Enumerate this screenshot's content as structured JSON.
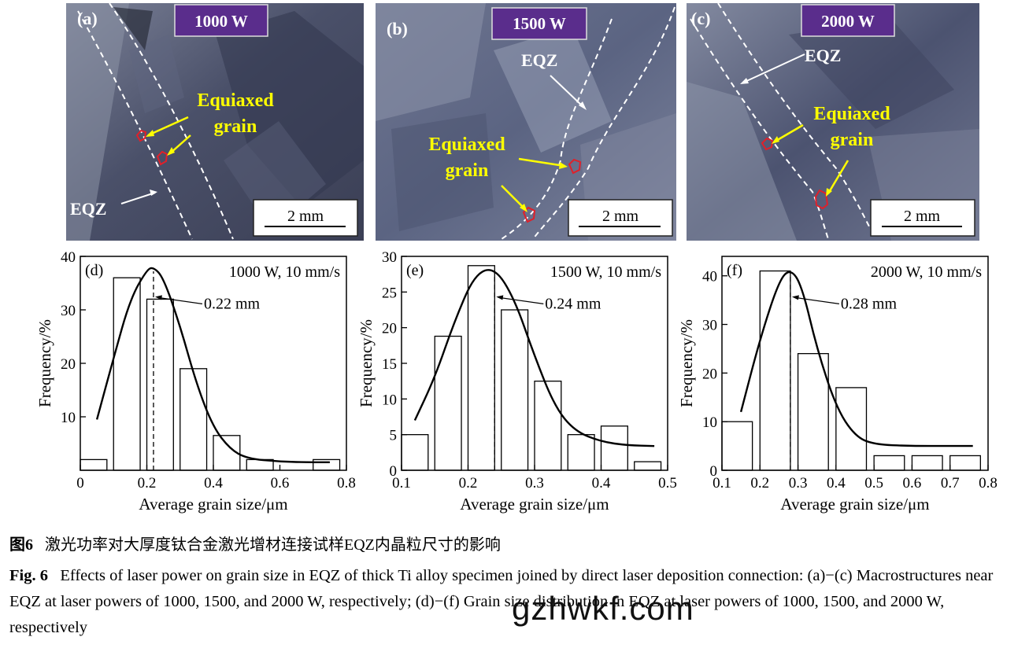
{
  "panels": [
    {
      "label": "(a)",
      "power": "1000 W",
      "eqz": "EQZ",
      "eq1": "Equiaxed",
      "eq2": "grain",
      "scale": "2 mm"
    },
    {
      "label": "(b)",
      "power": "1500 W",
      "eqz": "EQZ",
      "eq1": "Equiaxed",
      "eq2": "grain",
      "scale": "2 mm"
    },
    {
      "label": "(c)",
      "power": "2000 W",
      "eqz": "EQZ",
      "eq1": "Equiaxed",
      "eq2": "grain",
      "scale": "2 mm"
    }
  ],
  "chart_data": [
    {
      "type": "bar",
      "label": "(d)",
      "condition": "1000 W, 10 mm/s",
      "xlabel": "Average grain size/μm",
      "ylabel": "Frequency/%",
      "xlim": [
        0,
        0.8
      ],
      "ylim": [
        0,
        40
      ],
      "xticks": [
        "0",
        "0.2",
        "0.4",
        "0.6",
        "0.8"
      ],
      "yticks": [
        "10",
        "20",
        "30",
        "40"
      ],
      "bins": [
        [
          0.0,
          0.08,
          2
        ],
        [
          0.1,
          0.18,
          36
        ],
        [
          0.2,
          0.28,
          32
        ],
        [
          0.3,
          0.38,
          19
        ],
        [
          0.4,
          0.48,
          6.5
        ],
        [
          0.5,
          0.58,
          2
        ],
        [
          0.7,
          0.78,
          2
        ]
      ],
      "fit": [
        [
          0.05,
          9.5
        ],
        [
          0.1,
          21
        ],
        [
          0.15,
          32
        ],
        [
          0.2,
          37.5
        ],
        [
          0.22,
          38
        ],
        [
          0.25,
          36
        ],
        [
          0.3,
          27
        ],
        [
          0.35,
          16
        ],
        [
          0.4,
          8
        ],
        [
          0.45,
          4
        ],
        [
          0.5,
          2.2
        ],
        [
          0.6,
          1.6
        ],
        [
          0.7,
          1.5
        ],
        [
          0.75,
          1.5
        ]
      ],
      "mean": 0.22,
      "mean_label": "0.22 mm"
    },
    {
      "type": "bar",
      "label": "(e)",
      "condition": "1500 W, 10 mm/s",
      "xlabel": "Average grain size/μm",
      "ylabel": "Frequency/%",
      "xlim": [
        0.1,
        0.5
      ],
      "ylim": [
        0,
        30
      ],
      "xticks": [
        "0.1",
        "0.2",
        "0.3",
        "0.4",
        "0.5"
      ],
      "yticks": [
        "0",
        "5",
        "10",
        "15",
        "20",
        "25",
        "30"
      ],
      "bins": [
        [
          0.1,
          0.14,
          5
        ],
        [
          0.15,
          0.19,
          18.8
        ],
        [
          0.2,
          0.24,
          28.7
        ],
        [
          0.25,
          0.29,
          22.5
        ],
        [
          0.3,
          0.34,
          12.5
        ],
        [
          0.35,
          0.39,
          5
        ],
        [
          0.4,
          0.44,
          6.2
        ],
        [
          0.45,
          0.49,
          1.2
        ]
      ],
      "fit": [
        [
          0.12,
          7
        ],
        [
          0.15,
          13
        ],
        [
          0.18,
          21
        ],
        [
          0.21,
          27.5
        ],
        [
          0.24,
          28.5
        ],
        [
          0.27,
          24
        ],
        [
          0.3,
          16
        ],
        [
          0.33,
          9
        ],
        [
          0.36,
          5.5
        ],
        [
          0.4,
          4
        ],
        [
          0.44,
          3.5
        ],
        [
          0.48,
          3.4
        ]
      ],
      "mean": 0.24,
      "mean_label": "0.24 mm"
    },
    {
      "type": "bar",
      "label": "(f)",
      "condition": "2000 W, 10 mm/s",
      "xlabel": "Average grain size/μm",
      "ylabel": "Frequency/%",
      "xlim": [
        0.1,
        0.8
      ],
      "ylim": [
        0,
        44
      ],
      "xticks": [
        "0.1",
        "0.2",
        "0.3",
        "0.4",
        "0.5",
        "0.6",
        "0.7",
        "0.8"
      ],
      "yticks": [
        "0",
        "10",
        "20",
        "30",
        "40"
      ],
      "bins": [
        [
          0.1,
          0.18,
          10
        ],
        [
          0.2,
          0.28,
          41
        ],
        [
          0.3,
          0.38,
          24
        ],
        [
          0.4,
          0.48,
          17
        ],
        [
          0.5,
          0.58,
          3
        ],
        [
          0.6,
          0.68,
          3
        ],
        [
          0.7,
          0.78,
          3
        ]
      ],
      "fit": [
        [
          0.15,
          12
        ],
        [
          0.2,
          27
        ],
        [
          0.25,
          39
        ],
        [
          0.28,
          41.5
        ],
        [
          0.31,
          38
        ],
        [
          0.35,
          25
        ],
        [
          0.4,
          13
        ],
        [
          0.45,
          7
        ],
        [
          0.5,
          5.3
        ],
        [
          0.6,
          5
        ],
        [
          0.7,
          5
        ],
        [
          0.76,
          5
        ]
      ],
      "mean": 0.28,
      "mean_label": "0.28 mm"
    }
  ],
  "caption_cn": {
    "label": "图6",
    "text": "激光功率对大厚度钛合金激光增材连接试样EQZ内晶粒尺寸的影响"
  },
  "caption_en": {
    "label": "Fig. 6",
    "text": "Effects of laser power on grain size in EQZ of thick Ti alloy specimen joined by direct laser deposition connection: (a)−(c) Macrostructures near EQZ at laser powers of 1000, 1500, and 2000 W, respectively; (d)−(f) Grain size distribution in EQZ at laser powers of 1000, 1500, and 2000 W, respectively"
  },
  "watermark": "gzhwkf.com",
  "colors": {
    "photo_dark": "#3e4358",
    "photo_light": "#8f96ab",
    "badge": "#5a2d8c",
    "equiaxed": "#ffff00",
    "grain_outline": "#e0202a"
  }
}
